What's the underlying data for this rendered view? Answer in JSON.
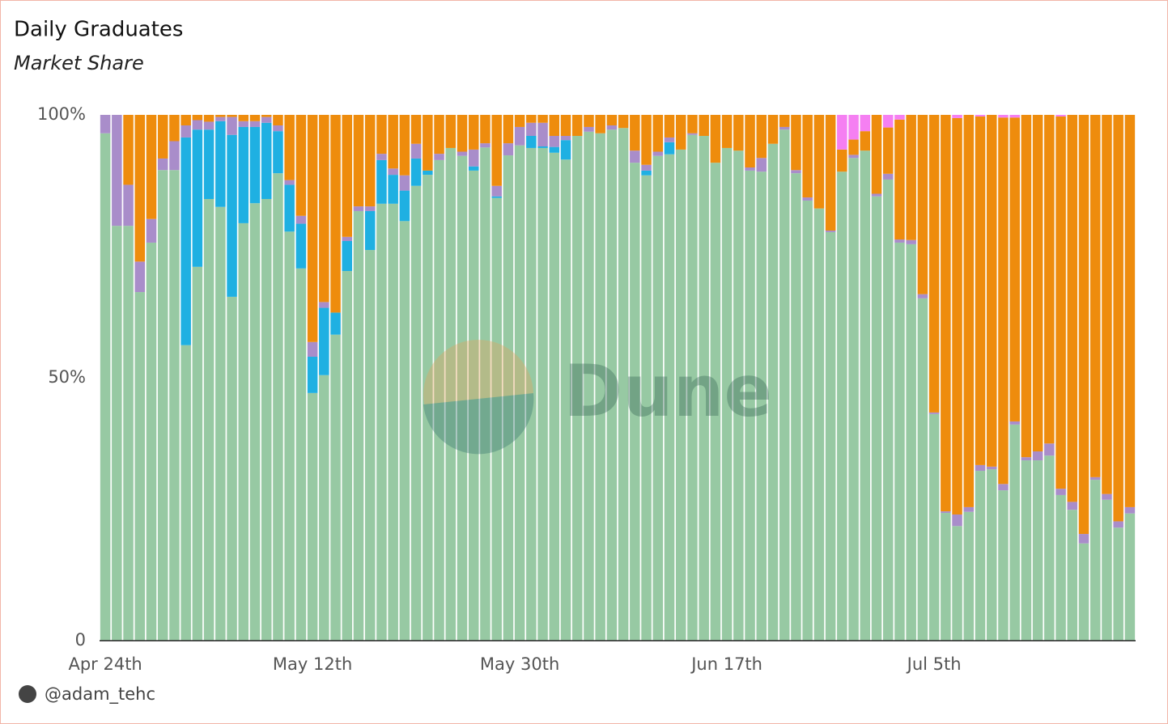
{
  "chart_data": {
    "type": "stacked-bar",
    "title": "Daily Graduates",
    "subtitle": "Market Share",
    "watermark": "Dune",
    "author": "@adam_tehc",
    "categories": [
      "Apr 24th",
      null,
      null,
      null,
      null,
      null,
      null,
      null,
      null,
      null,
      null,
      null,
      null,
      null,
      null,
      null,
      null,
      null,
      "May 12th",
      null,
      null,
      null,
      null,
      null,
      null,
      null,
      null,
      null,
      null,
      null,
      null,
      null,
      null,
      null,
      null,
      null,
      "May 30th",
      null,
      null,
      null,
      null,
      null,
      null,
      null,
      null,
      null,
      null,
      null,
      null,
      null,
      null,
      null,
      null,
      null,
      "Jun 17th",
      null,
      null,
      null,
      null,
      null,
      null,
      null,
      null,
      null,
      null,
      null,
      null,
      null,
      null,
      null,
      null,
      null,
      "Jul 5th",
      null,
      null,
      null,
      null,
      null,
      null,
      null,
      null,
      null,
      null,
      null,
      null,
      null,
      null,
      null,
      null,
      null
    ],
    "ylim": [
      0,
      100
    ],
    "yticks": [
      0,
      {
        "value": 50,
        "label": "50%"
      },
      {
        "value": 100,
        "label": "100%"
      }
    ],
    "grid": false,
    "series": [
      {
        "color": "#97c9a3",
        "values": [
          96.5,
          78.9,
          78.9,
          66.3,
          75.7,
          89.5,
          89.5,
          56.2,
          71.1,
          84.0,
          82.5,
          65.4,
          79.4,
          83.2,
          84.0,
          88.9,
          77.8,
          70.8,
          47.1,
          50.5,
          58.2,
          70.3,
          81.7,
          74.3,
          83.1,
          83.1,
          79.8,
          86.5,
          88.6,
          91.4,
          93.7,
          92.2,
          89.4,
          93.8,
          84.2,
          92.3,
          94.2,
          93.7,
          93.7,
          92.8,
          91.5,
          96.0,
          96.8,
          96.5,
          97.2,
          97.5,
          90.9,
          88.5,
          92.2,
          92.5,
          93.4,
          96.2,
          96.0,
          90.9,
          93.7,
          93.2,
          89.4,
          89.2,
          94.5,
          97.2,
          88.9,
          83.7,
          82.2,
          77.7,
          89.2,
          91.8,
          93.2,
          84.5,
          87.7,
          75.7,
          75.4,
          65.1,
          43.1,
          24.3,
          21.8,
          24.5,
          32.3,
          32.6,
          28.6,
          41.1,
          34.3,
          34.3,
          35.2,
          27.7,
          24.9,
          18.5,
          30.6,
          26.8,
          21.5,
          24.2
        ]
      },
      {
        "color": "#1fb0e2",
        "values": [
          0,
          0,
          0,
          0,
          0,
          0,
          0,
          39.5,
          26.1,
          13.2,
          16.3,
          30.8,
          18.3,
          14.5,
          14.5,
          8.0,
          8.9,
          8.5,
          6.9,
          12.8,
          4.2,
          5.7,
          0,
          7.4,
          8.3,
          5.5,
          5.8,
          5.2,
          0.8,
          0,
          0,
          0,
          0.8,
          0,
          0.3,
          0,
          0,
          2.3,
          0.3,
          1.1,
          3.7,
          0,
          0,
          0,
          0,
          0,
          0,
          0.9,
          0,
          2.3,
          0,
          0,
          0,
          0,
          0,
          0,
          0,
          0,
          0,
          0,
          0,
          0,
          0,
          0,
          0,
          0,
          0,
          0,
          0,
          0,
          0,
          0,
          0,
          0,
          0,
          0,
          0,
          0,
          0,
          0,
          0,
          0,
          0,
          0,
          0,
          0,
          0,
          0,
          0,
          0
        ]
      },
      {
        "color": "#a98dca",
        "values": [
          3.5,
          21.1,
          7.8,
          5.8,
          4.5,
          2.2,
          5.5,
          2.3,
          1.8,
          1.5,
          0.8,
          3.4,
          1.1,
          1.1,
          1.1,
          1.1,
          0.9,
          1.5,
          2.8,
          1.1,
          0,
          0.8,
          0.9,
          0.9,
          1.2,
          1.2,
          2.9,
          2.8,
          0,
          1.2,
          0,
          0.8,
          3.2,
          0.8,
          2.0,
          2.3,
          3.5,
          2.5,
          4.5,
          2.1,
          0.8,
          0,
          0.9,
          0,
          0.8,
          0,
          2.3,
          1.1,
          0.8,
          0.9,
          0,
          0.3,
          0,
          0,
          0,
          0,
          0.6,
          2.6,
          0,
          0.5,
          0.6,
          0.6,
          0,
          0.3,
          0,
          0.6,
          0,
          0.5,
          1.1,
          0.6,
          0.8,
          0.8,
          0.3,
          0.3,
          2.2,
          0.9,
          1.1,
          0.5,
          1.2,
          0.6,
          0.6,
          1.7,
          2.3,
          1.2,
          1.5,
          1.8,
          0.5,
          1.1,
          1.2,
          1.2
        ]
      },
      {
        "color": "#ee8c0d",
        "values": [
          0,
          0,
          13.3,
          27.9,
          19.8,
          8.3,
          5.0,
          2.0,
          1.0,
          1.3,
          0.4,
          0.4,
          1.2,
          1.2,
          0.4,
          2.0,
          12.4,
          19.2,
          43.2,
          35.6,
          37.6,
          23.2,
          17.4,
          17.4,
          7.4,
          10.2,
          11.5,
          5.5,
          10.6,
          7.4,
          6.3,
          7.0,
          6.6,
          5.4,
          13.5,
          5.4,
          2.3,
          1.5,
          1.5,
          4.0,
          4.0,
          4.0,
          2.3,
          3.5,
          2.0,
          2.5,
          6.8,
          9.5,
          7.0,
          4.3,
          6.6,
          3.5,
          4.0,
          9.1,
          6.3,
          6.8,
          10.0,
          8.2,
          5.5,
          2.3,
          10.5,
          15.7,
          17.8,
          22.0,
          4.2,
          2.9,
          3.7,
          15.0,
          8.8,
          22.8,
          23.8,
          34.1,
          56.6,
          75.4,
          75.4,
          74.6,
          66.3,
          66.9,
          69.7,
          57.8,
          65.1,
          64.0,
          62.5,
          70.8,
          73.6,
          79.7,
          68.9,
          72.1,
          77.3,
          74.6
        ]
      },
      {
        "color": "#f57ff2",
        "values": [
          0,
          0,
          0,
          0,
          0,
          0,
          0,
          0,
          0,
          0,
          0,
          0,
          0,
          0,
          0,
          0,
          0,
          0,
          0,
          0,
          0,
          0,
          0,
          0,
          0,
          0,
          0,
          0,
          0,
          0,
          0,
          0,
          0,
          0,
          0,
          0,
          0,
          0,
          0,
          0,
          0,
          0,
          0,
          0,
          0,
          0,
          0,
          0,
          0,
          0,
          0,
          0,
          0,
          0,
          0,
          0,
          0,
          0,
          0,
          0,
          0,
          0,
          0,
          0,
          6.6,
          4.7,
          3.1,
          0,
          2.4,
          0.9,
          0,
          0,
          0,
          0,
          0.6,
          0,
          0.3,
          0,
          0.5,
          0.5,
          0,
          0,
          0,
          0.3,
          0,
          0,
          0,
          0,
          0,
          0
        ]
      }
    ]
  }
}
